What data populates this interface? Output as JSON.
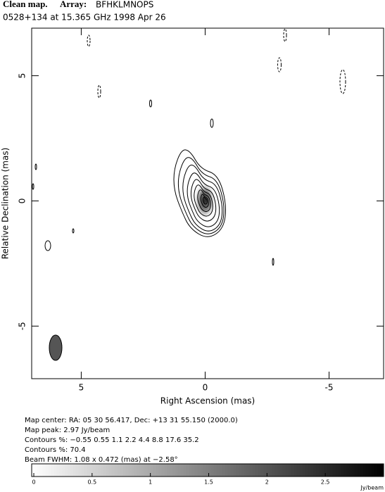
{
  "chart_data": {
    "type": "contour",
    "title": "Clean map.",
    "array_label": "Array:",
    "array": "BFHKLMNOPS",
    "subtitle": "0528+134 at 15.365 GHz 1998 Apr 26",
    "xlabel": "Right Ascension  (mas)",
    "ylabel": "Relative Declination  (mas)",
    "xlim": [
      7.0,
      -7.2
    ],
    "ylim": [
      -7.1,
      6.9
    ],
    "xticks": [
      5,
      0,
      -5
    ],
    "yticks": [
      5,
      0,
      -5
    ],
    "notes": [
      "Map center:  RA: 05 30 56.417,  Dec: +13 31 55.150 (2000.0)",
      "Map peak: 2.97 Jy/beam",
      "Contours %: −0.55 0.55 1.1 2.2 4.4 8.8 17.6 35.2",
      "Contours %: 70.4",
      "Beam FWHM: 1.08 x 0.472 (mas) at −2.58°"
    ],
    "colorbar": {
      "lim": [
        0,
        3.0
      ],
      "ticks": [
        0,
        0.5,
        1,
        1.5,
        2,
        2.5
      ],
      "label": "Jy/beam"
    }
  }
}
